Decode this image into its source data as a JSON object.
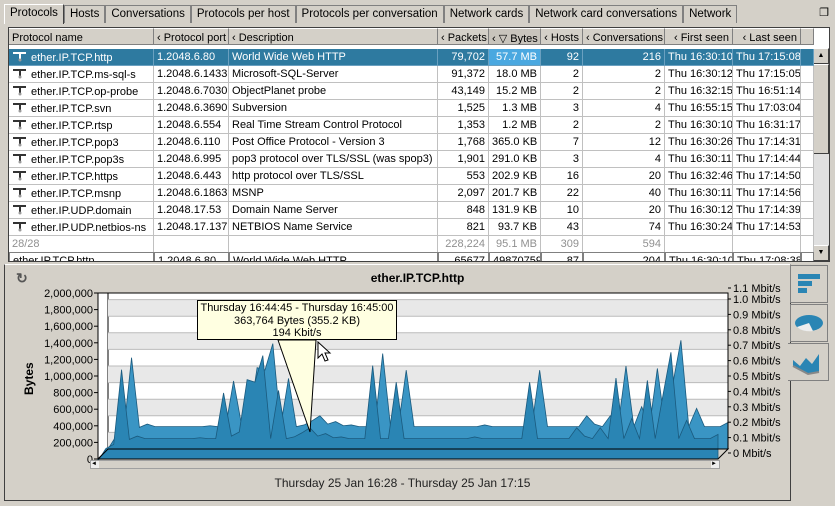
{
  "tabs": [
    "Protocols",
    "Hosts",
    "Conversations",
    "Protocols per host",
    "Protocols per conversation",
    "Network cards",
    "Network card conversations",
    "Network"
  ],
  "restore_icon": "restore-window-icon",
  "columns": [
    "Protocol name",
    "‹ Protocol port",
    "‹ Description",
    "‹ Packets",
    "‹ ▽ Bytes",
    "‹ Hosts",
    "‹ Conversations",
    "‹   First seen",
    "‹   Last seen"
  ],
  "rows": [
    [
      "ether.IP.TCP.http",
      "1.2048.6.80",
      "World Wide Web HTTP",
      "79,702",
      "57.7 MB",
      "92",
      "216",
      "Thu 16:30:10",
      "Thu 17:15:08"
    ],
    [
      "ether.IP.TCP.ms-sql-s",
      "1.2048.6.1433",
      "Microsoft-SQL-Server",
      "91,372",
      "18.0 MB",
      "2",
      "2",
      "Thu 16:30:12",
      "Thu 17:15:05"
    ],
    [
      "ether.IP.TCP.op-probe",
      "1.2048.6.7030",
      "ObjectPlanet probe",
      "43,149",
      "15.2 MB",
      "2",
      "2",
      "Thu 16:32:15",
      "Thu 16:51:14"
    ],
    [
      "ether.IP.TCP.svn",
      "1.2048.6.3690",
      "Subversion",
      "1,525",
      "1.3 MB",
      "3",
      "4",
      "Thu 16:55:15",
      "Thu 17:03:04"
    ],
    [
      "ether.IP.TCP.rtsp",
      "1.2048.6.554",
      "Real Time Stream Control Protocol",
      "1,353",
      "1.2 MB",
      "2",
      "2",
      "Thu 16:30:10",
      "Thu 16:31:17"
    ],
    [
      "ether.IP.TCP.pop3",
      "1.2048.6.110",
      "Post Office Protocol - Version 3",
      "1,768",
      "365.0 KB",
      "7",
      "12",
      "Thu 16:30:26",
      "Thu 17:14:31"
    ],
    [
      "ether.IP.TCP.pop3s",
      "1.2048.6.995",
      "pop3 protocol over TLS/SSL (was spop3)",
      "1,901",
      "291.0 KB",
      "3",
      "4",
      "Thu 16:30:11",
      "Thu 17:14:44"
    ],
    [
      "ether.IP.TCP.https",
      "1.2048.6.443",
      "http protocol over TLS/SSL",
      "553",
      "202.9 KB",
      "16",
      "20",
      "Thu 16:32:46",
      "Thu 17:14:50"
    ],
    [
      "ether.IP.TCP.msnp",
      "1.2048.6.1863",
      "MSNP",
      "2,097",
      "201.7 KB",
      "22",
      "40",
      "Thu 16:30:11",
      "Thu 17:14:56"
    ],
    [
      "ether.IP.UDP.domain",
      "1.2048.17.53",
      "Domain Name Server",
      "848",
      "131.9 KB",
      "10",
      "20",
      "Thu 16:30:12",
      "Thu 17:14:39"
    ],
    [
      "ether.IP.UDP.netbios-ns",
      "1.2048.17.137",
      "NETBIOS Name Service",
      "821",
      "93.7 KB",
      "43",
      "74",
      "Thu 16:30:24",
      "Thu 17:14:53"
    ]
  ],
  "summary": [
    "28/28",
    "",
    "",
    "228,224",
    "95.1 MB",
    "309",
    "594",
    "",
    ""
  ],
  "filter": [
    "ether.IP.TCP.http",
    "1.2048.6.80",
    "World Wide Web HTTP",
    "65677",
    "49870759",
    "87",
    "204",
    "Thu 16:30:10",
    "Thu 17:08:38"
  ],
  "chart_data": {
    "type": "area",
    "title": "ether.IP.TCP.http",
    "xlabel": "Thursday 25 Jan 16:28 - Thursday 25 Jan 17:15",
    "ylabel": "Bytes",
    "ylim": [
      0,
      2000000
    ],
    "y_ticks": [
      "2,000,000",
      "1,800,000",
      "1,600,000",
      "1,400,000",
      "1,200,000",
      "1,000,000",
      "800,000",
      "600,000",
      "400,000",
      "200,000",
      "0"
    ],
    "y2_ticks": [
      "1.1 Mbit/s",
      "1.0 Mbit/s",
      "0.9 Mbit/s",
      "0.8 Mbit/s",
      "0.7 Mbit/s",
      "0.6 Mbit/s",
      "0.5 Mbit/s",
      "0.4 Mbit/s",
      "0.3 Mbit/s",
      "0.2 Mbit/s",
      "0.1 Mbit/s",
      "0 Mbit/s"
    ],
    "color": "#2a85b4",
    "values": [
      0,
      150000,
      200000,
      1100000,
      260000,
      300000,
      270000,
      270000,
      270000,
      270000,
      270000,
      270000,
      270000,
      280000,
      270000,
      270000,
      820000,
      300000,
      350000,
      980000,
      950000,
      1270000,
      270000,
      850000,
      270000,
      290000,
      340000,
      400000,
      300000,
      330000,
      280000,
      290000,
      270000,
      270000,
      270000,
      1150000,
      270000,
      270000,
      950000,
      270000,
      270000,
      270000,
      270000,
      270000,
      270000,
      270000,
      270000,
      270000,
      290000,
      270000,
      270000,
      270000,
      270000,
      270000,
      270000,
      950000,
      270000,
      270000,
      270000,
      270000,
      270000,
      400000,
      300000,
      270000,
      400000,
      270000,
      1000000,
      270000,
      510000,
      270000,
      970000,
      270000,
      800000,
      1310000,
      270000,
      490000,
      270000,
      270000,
      270000,
      320000
    ]
  },
  "tooltip": {
    "line1": "Thursday 16:44:45 - Thursday 16:45:00",
    "line2": "363,764 Bytes (355.2 KB)",
    "line3": "194 Kbit/s"
  }
}
